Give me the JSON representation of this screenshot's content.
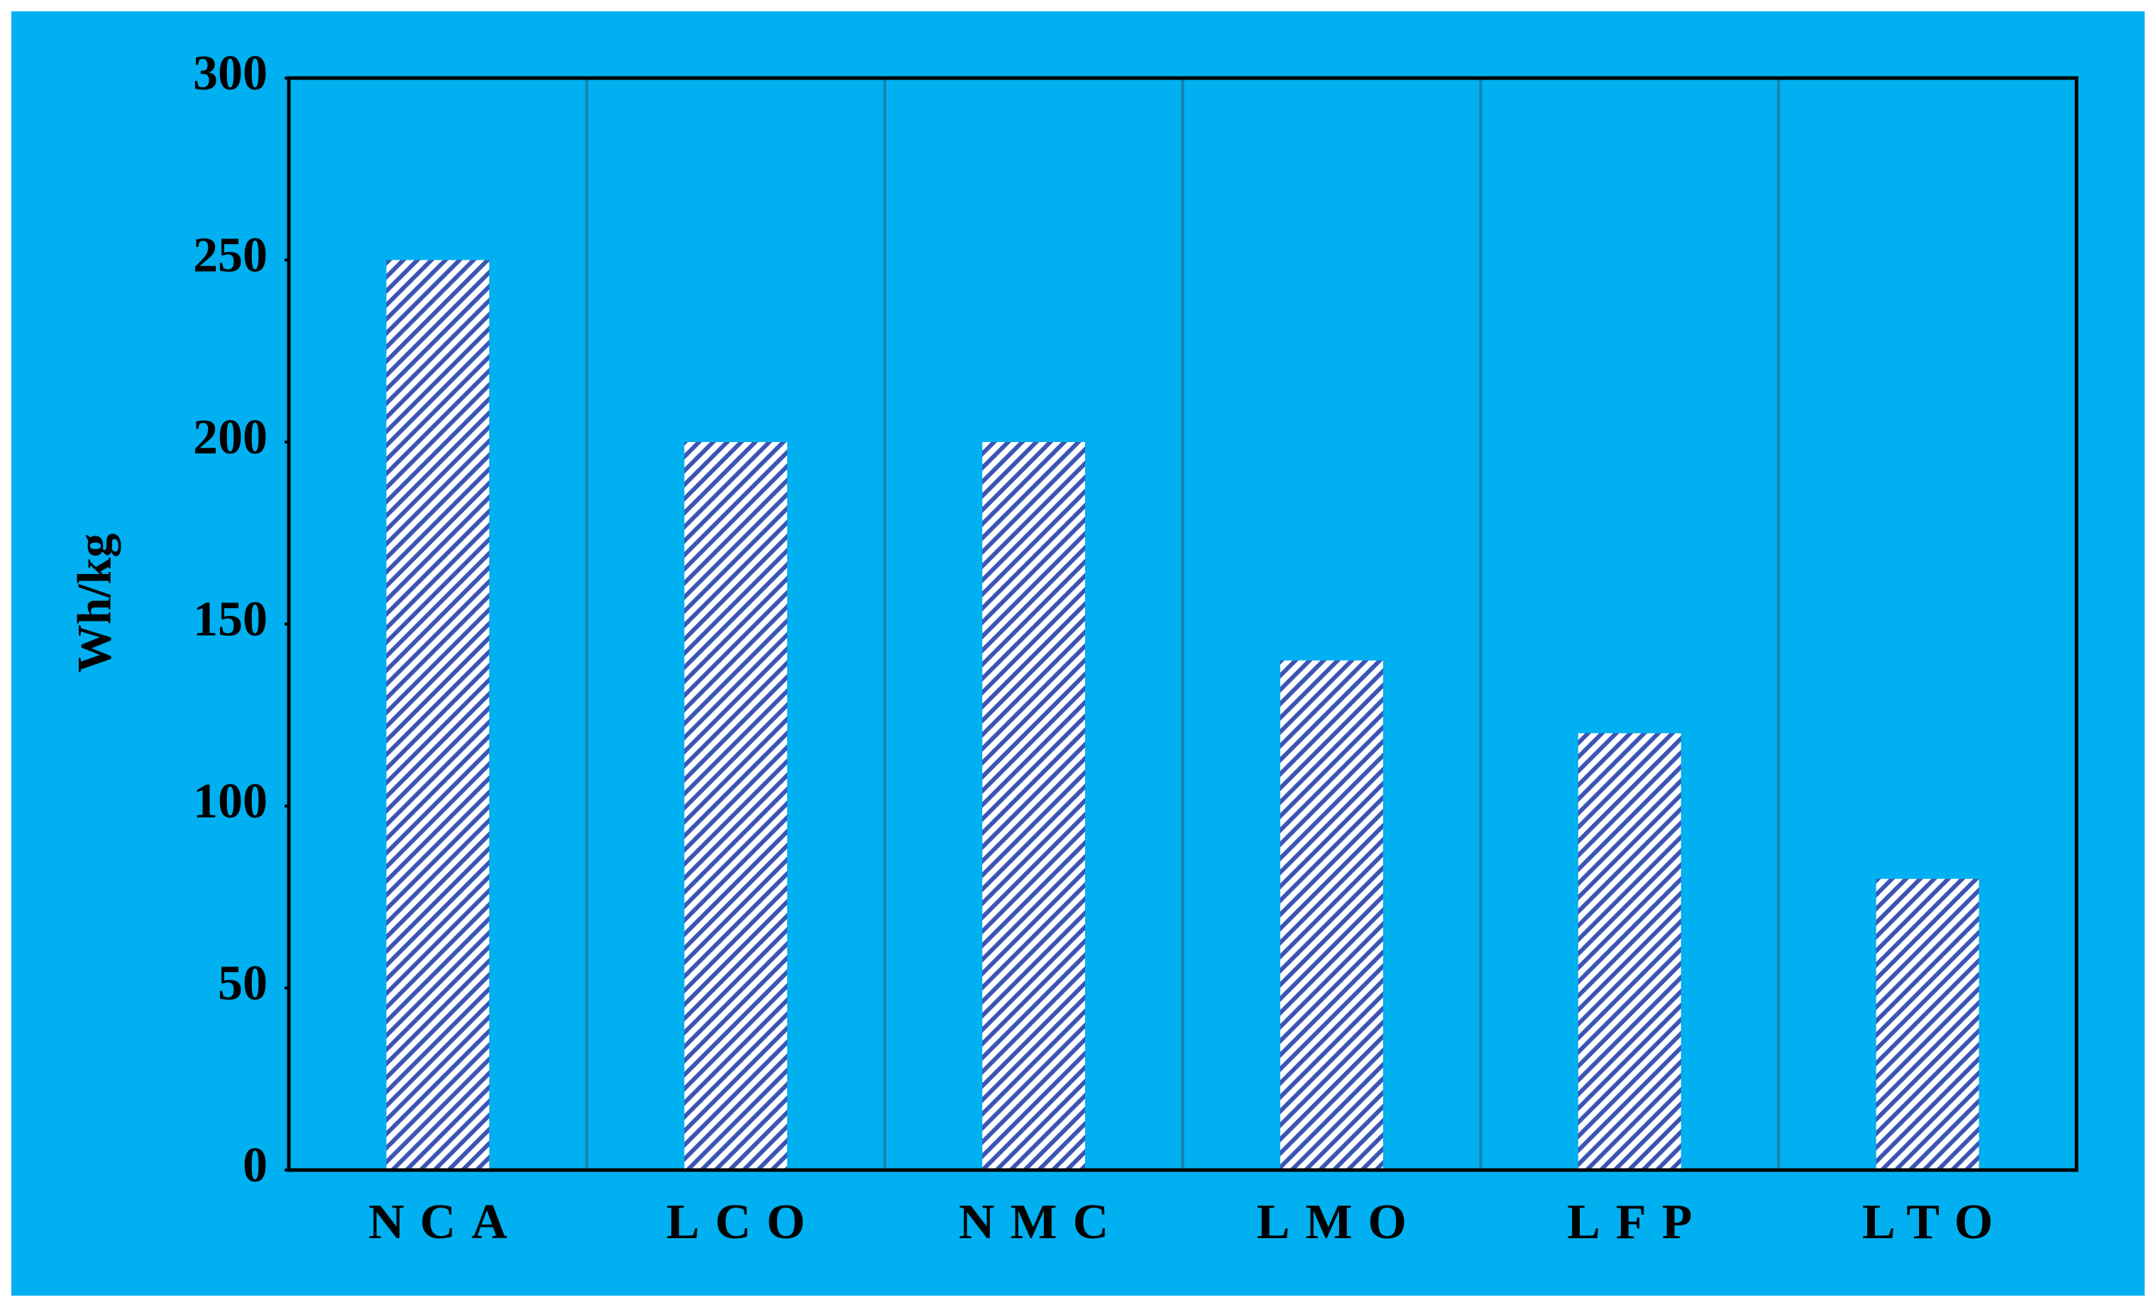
{
  "chart_data": {
    "type": "bar",
    "y_label": "Wh/kg",
    "categories": [
      "NCA",
      "LCO",
      "NMC",
      "LMO",
      "LFP",
      "LTO"
    ],
    "values": [
      250,
      200,
      200,
      140,
      120,
      80
    ],
    "color": "#3a55b4",
    "ylim": [
      0,
      300
    ],
    "yticks": [
      0,
      50,
      100,
      150,
      200,
      250,
      300
    ]
  }
}
